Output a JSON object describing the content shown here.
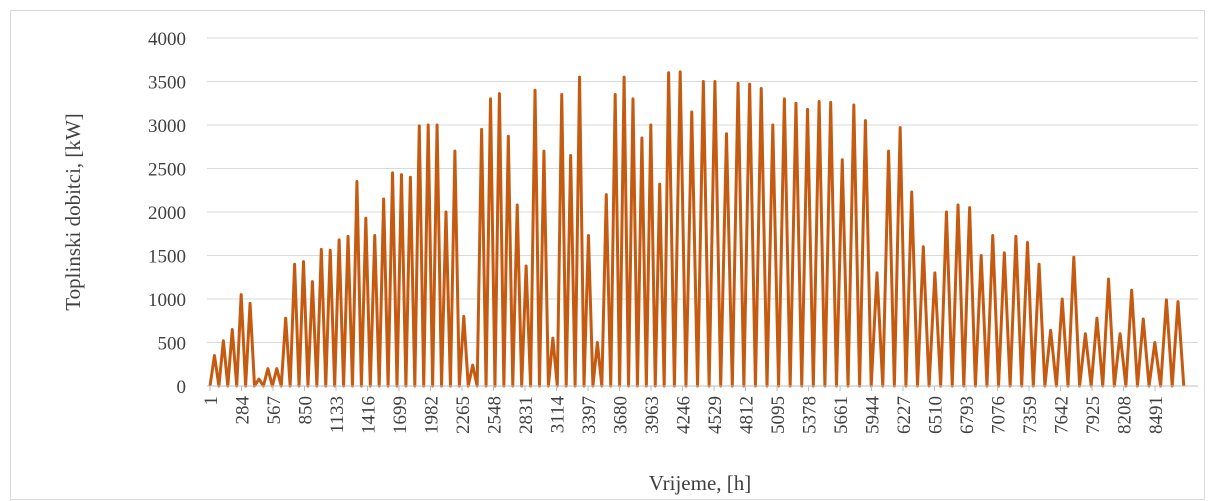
{
  "chart_data": {
    "type": "line",
    "y_label": "Toplinski dobitci, [kW]",
    "x_label": "Vrijeme, [h]",
    "color": "#c55a11",
    "grid": true,
    "xlim": [
      1,
      8760
    ],
    "ylim": [
      0,
      4000
    ],
    "yticks": [
      0,
      500,
      1000,
      1500,
      2000,
      2500,
      3000,
      3500,
      4000
    ],
    "xticks": [
      1,
      284,
      567,
      850,
      1133,
      1416,
      1699,
      1982,
      2265,
      2548,
      2831,
      3114,
      3397,
      3680,
      3963,
      4246,
      4529,
      4812,
      5095,
      5378,
      5661,
      5944,
      6227,
      6510,
      6793,
      7076,
      7359,
      7642,
      7925,
      8208,
      8491
    ],
    "x": [
      1,
      41,
      81,
      121,
      161,
      201,
      241,
      281,
      321,
      361,
      401,
      441,
      481,
      521,
      561,
      601,
      641,
      681,
      721,
      761,
      801,
      841,
      881,
      921,
      961,
      1001,
      1041,
      1081,
      1121,
      1161,
      1201,
      1241,
      1281,
      1321,
      1361,
      1401,
      1441,
      1481,
      1521,
      1561,
      1601,
      1641,
      1681,
      1721,
      1761,
      1801,
      1841,
      1881,
      1921,
      1961,
      2001,
      2041,
      2081,
      2121,
      2161,
      2201,
      2241,
      2281,
      2321,
      2361,
      2401,
      2441,
      2481,
      2521,
      2561,
      2601,
      2641,
      2681,
      2721,
      2761,
      2801,
      2841,
      2881,
      2921,
      2961,
      3001,
      3041,
      3081,
      3121,
      3161,
      3201,
      3241,
      3281,
      3321,
      3361,
      3401,
      3441,
      3481,
      3521,
      3561,
      3601,
      3641,
      3681,
      3721,
      3761,
      3801,
      3841,
      3881,
      3921,
      3961,
      4001,
      4041,
      4081,
      4121,
      4173,
      4225,
      4277,
      4329,
      4381,
      4433,
      4485,
      4537,
      4589,
      4641,
      4693,
      4745,
      4797,
      4849,
      4901,
      4953,
      5005,
      5057,
      5109,
      5161,
      5213,
      5265,
      5317,
      5369,
      5421,
      5473,
      5525,
      5577,
      5629,
      5681,
      5733,
      5785,
      5837,
      5889,
      5941,
      5993,
      6045,
      6097,
      6149,
      6201,
      6253,
      6305,
      6357,
      6409,
      6461,
      6513,
      6565,
      6617,
      6669,
      6721,
      6773,
      6825,
      6877,
      6929,
      6981,
      7033,
      7085,
      7137,
      7189,
      7241,
      7293,
      7345,
      7397,
      7449,
      7501,
      7553,
      7605,
      7657,
      7709,
      7761,
      7813,
      7865,
      7917,
      7969,
      8021,
      8073,
      8125,
      8177,
      8229,
      8281,
      8333,
      8385,
      8437,
      8489,
      8541,
      8593,
      8645,
      8697,
      8749
    ],
    "values": [
      0,
      350,
      0,
      520,
      0,
      650,
      0,
      1050,
      0,
      950,
      0,
      80,
      0,
      200,
      0,
      200,
      0,
      780,
      0,
      1400,
      0,
      1430,
      0,
      1200,
      0,
      1570,
      0,
      1560,
      0,
      1680,
      0,
      1720,
      0,
      2350,
      0,
      1930,
      0,
      1730,
      0,
      2150,
      0,
      2450,
      0,
      2430,
      0,
      2400,
      0,
      2990,
      0,
      3000,
      0,
      3000,
      0,
      2000,
      0,
      2700,
      0,
      800,
      0,
      240,
      0,
      2950,
      0,
      3300,
      0,
      3360,
      0,
      2870,
      0,
      2080,
      0,
      1380,
      0,
      3400,
      0,
      2700,
      0,
      550,
      0,
      3350,
      0,
      2650,
      0,
      3550,
      0,
      1730,
      0,
      500,
      0,
      2200,
      0,
      3350,
      0,
      3550,
      0,
      3300,
      0,
      2850,
      0,
      3000,
      0,
      2320,
      0,
      3600,
      0,
      3610,
      0,
      3150,
      0,
      3500,
      0,
      3500,
      0,
      2900,
      0,
      3480,
      0,
      3470,
      0,
      3420,
      0,
      3000,
      0,
      3300,
      0,
      3250,
      0,
      3180,
      0,
      3270,
      0,
      3260,
      0,
      2600,
      0,
      3230,
      0,
      3050,
      0,
      1300,
      0,
      2700,
      0,
      2970,
      0,
      2230,
      0,
      1600,
      0,
      1300,
      0,
      2000,
      0,
      2080,
      0,
      2050,
      0,
      1500,
      0,
      1730,
      0,
      1530,
      0,
      1720,
      0,
      1650,
      0,
      1400,
      0,
      640,
      0,
      1000,
      0,
      1480,
      0,
      600,
      0,
      780,
      0,
      1230,
      0,
      600,
      0,
      1100,
      0,
      770,
      0,
      500,
      0,
      990,
      0,
      970,
      0
    ]
  }
}
